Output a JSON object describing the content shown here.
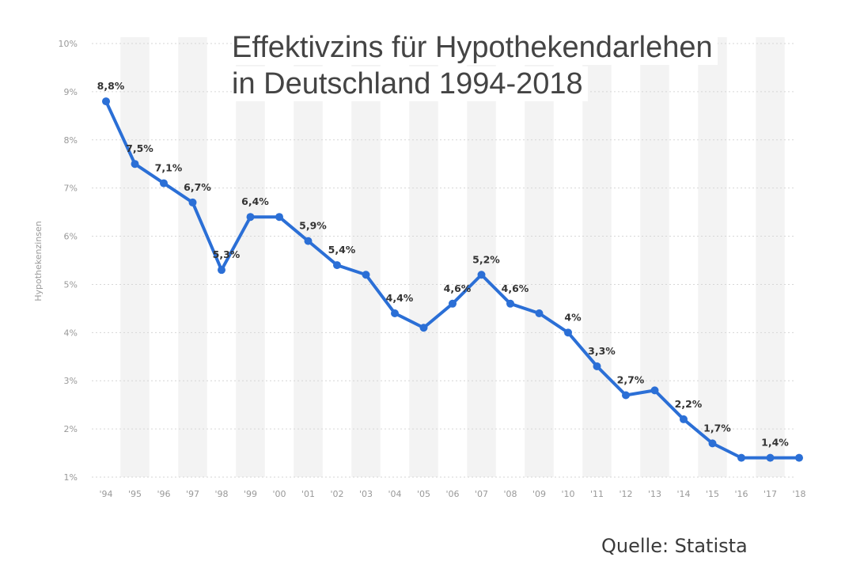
{
  "chart_data": {
    "type": "line",
    "title": "Effektivzins für Hypothekendarlehen",
    "subtitle": "in Deutschland 1994-2018",
    "xlabel": "",
    "ylabel": "Hypothekenzinsen",
    "categories": [
      "'94",
      "'95",
      "'96",
      "'97",
      "'98",
      "'99",
      "'00",
      "'01",
      "'02",
      "'03",
      "'04",
      "'05",
      "'06",
      "'07",
      "'08",
      "'09",
      "'10",
      "'11",
      "'12",
      "'13",
      "'14",
      "'15",
      "'16",
      "'17",
      "'18"
    ],
    "series": [
      {
        "name": "Hypothekenzinsen",
        "values": [
          8.8,
          7.5,
          7.1,
          6.7,
          5.3,
          6.4,
          6.4,
          5.9,
          5.4,
          5.2,
          4.4,
          4.1,
          4.6,
          5.2,
          4.6,
          4.4,
          4.0,
          3.3,
          2.7,
          2.8,
          2.2,
          1.7,
          1.4,
          1.4,
          1.4
        ],
        "color": "#2b6fd6"
      }
    ],
    "data_labels": [
      {
        "index": 0,
        "text": "8,8%"
      },
      {
        "index": 1,
        "text": "7,5%"
      },
      {
        "index": 2,
        "text": "7,1%"
      },
      {
        "index": 3,
        "text": "6,7%"
      },
      {
        "index": 4,
        "text": "5,3%"
      },
      {
        "index": 5,
        "text": "6,4%"
      },
      {
        "index": 7,
        "text": "5,9%"
      },
      {
        "index": 8,
        "text": "5,4%"
      },
      {
        "index": 10,
        "text": "4,4%"
      },
      {
        "index": 12,
        "text": "4,6%"
      },
      {
        "index": 13,
        "text": "5,2%"
      },
      {
        "index": 14,
        "text": "4,6%"
      },
      {
        "index": 16,
        "text": "4%"
      },
      {
        "index": 17,
        "text": "3,3%"
      },
      {
        "index": 18,
        "text": "2,7%"
      },
      {
        "index": 20,
        "text": "2,2%"
      },
      {
        "index": 21,
        "text": "1,7%"
      },
      {
        "index": 23,
        "text": "1,4%"
      }
    ],
    "y_ticks": [
      {
        "value": 1,
        "label": "1%"
      },
      {
        "value": 2,
        "label": "2%"
      },
      {
        "value": 3,
        "label": "3%"
      },
      {
        "value": 4,
        "label": "4%"
      },
      {
        "value": 5,
        "label": "5%"
      },
      {
        "value": 6,
        "label": "6%"
      },
      {
        "value": 7,
        "label": "7%"
      },
      {
        "value": 8,
        "label": "8%"
      },
      {
        "value": 9,
        "label": "9%"
      },
      {
        "value": 10,
        "label": "10%"
      }
    ],
    "ylim": [
      1,
      10
    ],
    "grid": true,
    "source": "Quelle: Statista"
  },
  "colors": {
    "line": "#2b6fd6",
    "grid": "#d6d6d6",
    "band": "#f3f3f3"
  }
}
